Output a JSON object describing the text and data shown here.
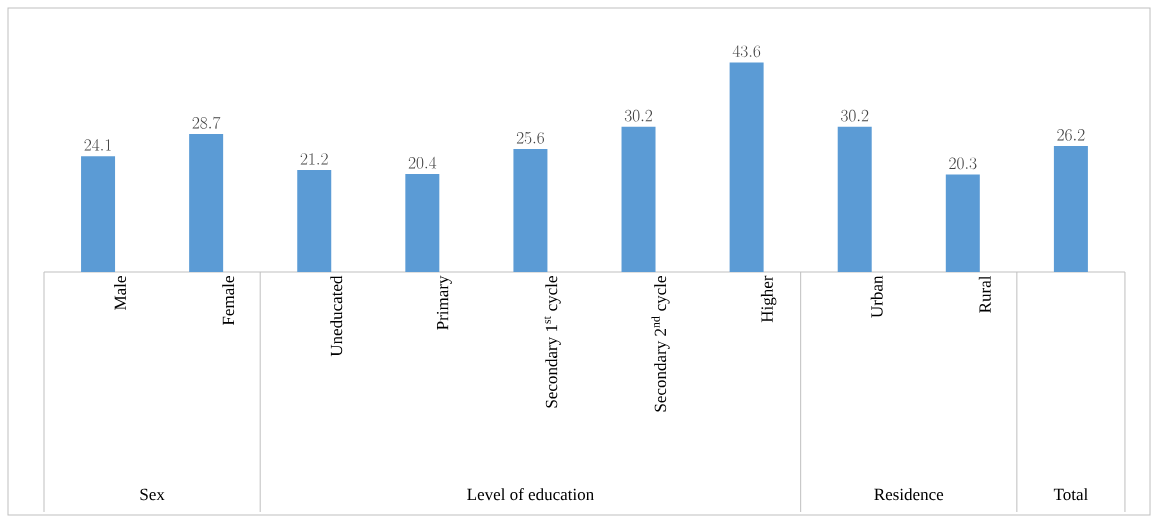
{
  "chart_data": {
    "type": "bar",
    "categories": [
      "Male",
      "Female",
      "Uneducated",
      "Primary",
      "Secondary 1$^{st}$ cycle",
      "Secondary 2$^{nd}$ cycle",
      "Higher",
      "Urban",
      "Rural",
      null
    ],
    "values": [
      24.1,
      28.7,
      21.2,
      20.4,
      25.6,
      30.2,
      43.6,
      30.2,
      20.3,
      26.2
    ],
    "color": "#5b9bd5",
    "data_labels": true,
    "annotations": [
      "Sex",
      "Level of education",
      "Residence",
      "Total"
    ]
  }
}
